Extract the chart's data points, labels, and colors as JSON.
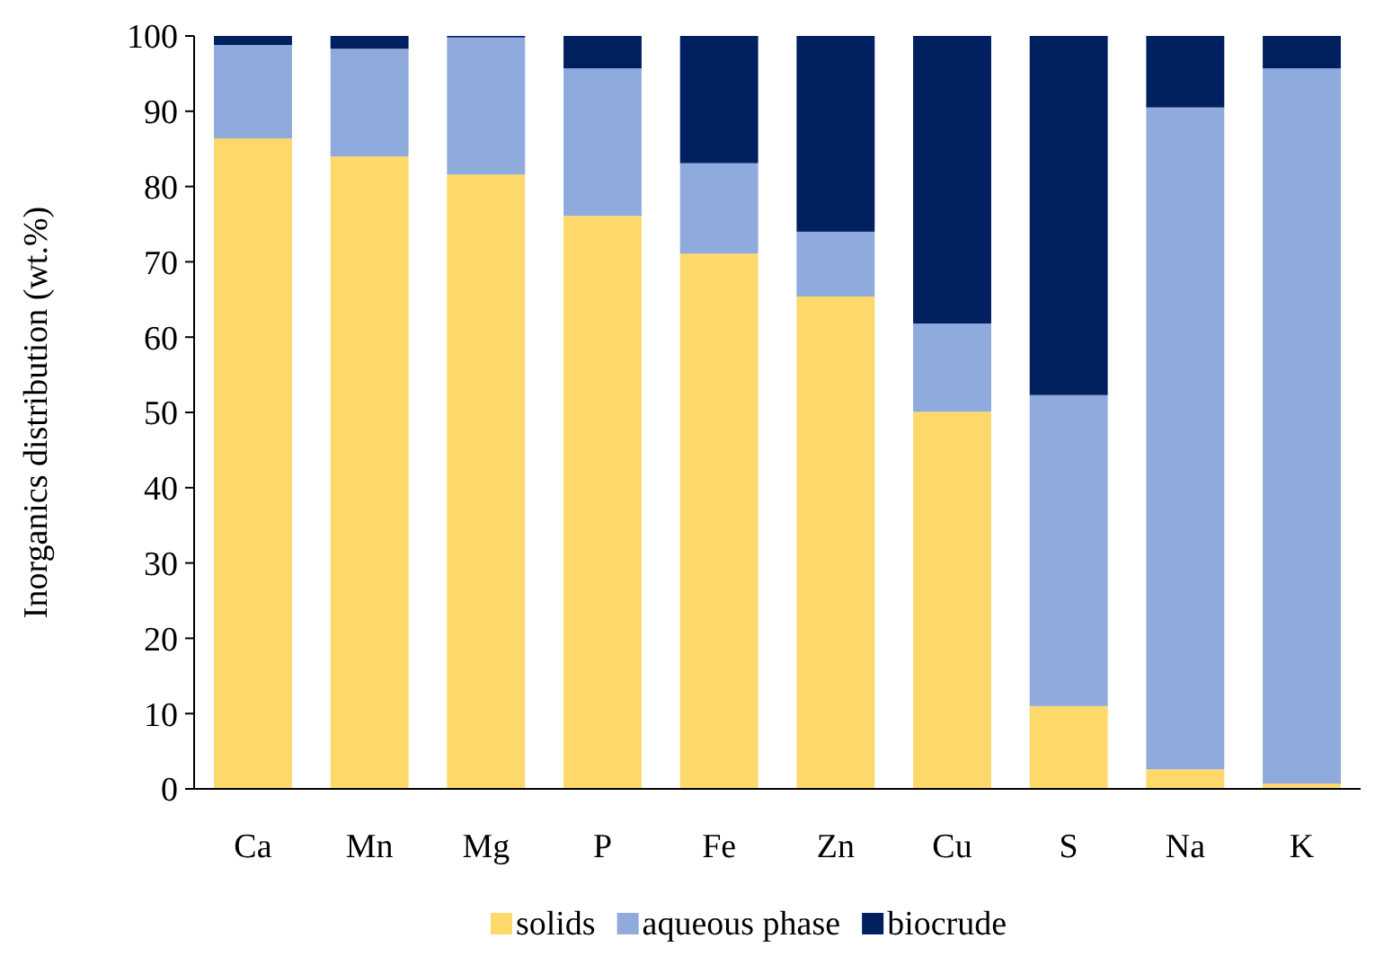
{
  "chart_data": {
    "type": "bar",
    "stacked": true,
    "ylabel": "Inorganics distribution (wt.%)",
    "categories": [
      "Ca",
      "Mn",
      "Mg",
      "P",
      "Fe",
      "Zn",
      "Cu",
      "S",
      "Na",
      "K"
    ],
    "ylim": [
      0,
      100
    ],
    "yticks": [
      0,
      10,
      20,
      30,
      40,
      50,
      60,
      70,
      80,
      90,
      100
    ],
    "legend": "bottom",
    "series": [
      {
        "name": "solids",
        "color": "#fdd86b",
        "values": [
          86.4,
          84.0,
          81.6,
          76.1,
          71.1,
          65.4,
          50.1,
          11.0,
          2.6,
          0.7
        ]
      },
      {
        "name": "aqueous phase",
        "color": "#8faadc",
        "values": [
          12.4,
          14.3,
          18.2,
          19.6,
          12.0,
          8.6,
          11.7,
          41.3,
          87.9,
          95.0
        ]
      },
      {
        "name": "biocrude",
        "color": "#002060",
        "values": [
          1.2,
          1.7,
          0.2,
          4.3,
          16.9,
          26.0,
          38.2,
          47.7,
          9.5,
          4.3
        ]
      }
    ]
  }
}
